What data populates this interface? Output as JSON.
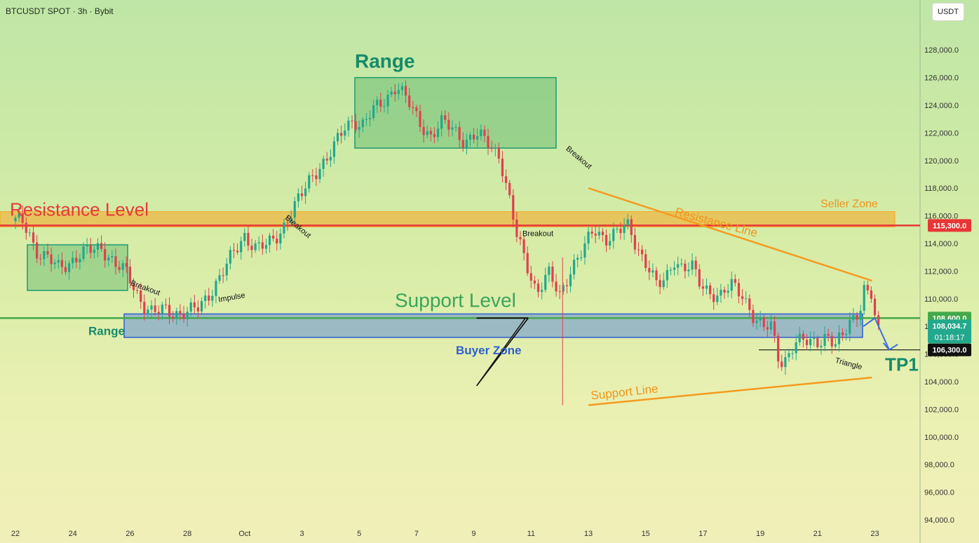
{
  "header": {
    "title": "BTCUSDT SPOT · 3h · Bybit",
    "unit_button": "USDT"
  },
  "colors": {
    "candle_up": "#22a88c",
    "candle_down": "#e0404e",
    "resistance": "#e83535",
    "support": "#43a84a",
    "zone_orange": "#f5a623",
    "zone_blue": "#4a7be0",
    "trend_orange": "#f59b1f",
    "range_green": "#3aa55a"
  },
  "chart_data": {
    "type": "candlestick",
    "ylim": [
      94000,
      128800
    ],
    "y_ticks": [
      94000,
      96000,
      98000,
      100000,
      102000,
      104000,
      106000,
      108000,
      110000,
      112000,
      114000,
      116000,
      118000,
      120000,
      122000,
      124000,
      126000,
      128000
    ],
    "y_tick_labels": [
      "94,000.0",
      "96,000.0",
      "98,000.0",
      "100,000.0",
      "102,000.0",
      "104,000.0",
      "106,000.0",
      "108,000.0",
      "110,000.0",
      "112,000.0",
      "114,000.0",
      "116,000.0",
      "118,000.0",
      "120,000.0",
      "122,000.0",
      "124,000.0",
      "126,000.0",
      "128,000.0"
    ],
    "x_ticks": [
      "22",
      "24",
      "26",
      "28",
      "Oct",
      "3",
      "5",
      "7",
      "9",
      "11",
      "13",
      "15",
      "17",
      "19",
      "21",
      "23"
    ],
    "candle_path_days": [
      0,
      0.3,
      0.5,
      0.7,
      1,
      1.5,
      2,
      2.5,
      3,
      3.5,
      3.9,
      4.2,
      4.5,
      4.8,
      5.2,
      5.6,
      6,
      6.4,
      6.8,
      7.2,
      7.6,
      8,
      8.4,
      8.8,
      9.2,
      9.6,
      10,
      10.3,
      10.6,
      10.9,
      11.2,
      11.5,
      11.8,
      12.1,
      12.5,
      12.9,
      13.3,
      13.7,
      14.1,
      14.5,
      14.9,
      15.3,
      15.7,
      16.1,
      16.5,
      16.9,
      17.2,
      17.5,
      17.8,
      18.2,
      18.6,
      19,
      19.4,
      19.8,
      20.2,
      20.6,
      21,
      21.4,
      21.6,
      21.8,
      22.1,
      22.4,
      22.7,
      23,
      23.3,
      23.6,
      23.9,
      24.2,
      24.6,
      25,
      25.4,
      25.8,
      26.1,
      26.4,
      26.6,
      26.8,
      27.2,
      27.6,
      28,
      28.3,
      28.6,
      28.9,
      29.1,
      29.35,
      29.5
    ],
    "candle_path_prices": [
      115600,
      115500,
      114800,
      113500,
      113000,
      112300,
      112800,
      113400,
      113800,
      112400,
      111800,
      110600,
      109500,
      108900,
      109200,
      109000,
      109000,
      109300,
      110500,
      111800,
      113200,
      114600,
      113700,
      113800,
      114700,
      116200,
      117500,
      118700,
      119600,
      120200,
      121200,
      122400,
      123000,
      122500,
      123600,
      124400,
      125500,
      124200,
      122800,
      121800,
      122700,
      122300,
      121400,
      121800,
      121300,
      120400,
      117500,
      114500,
      112800,
      110500,
      111800,
      110200,
      112300,
      113400,
      115000,
      114400,
      114800,
      115200,
      114200,
      113400,
      112300,
      110800,
      111400,
      112900,
      112200,
      112300,
      111000,
      110600,
      110200,
      110900,
      110300,
      108600,
      107800,
      108000,
      106000,
      105400,
      106700,
      106900,
      107000,
      107300,
      106500,
      107300,
      108500,
      108800,
      109600
    ],
    "candles_after": [
      111000,
      110600,
      110000,
      108800,
      108034.7
    ],
    "price_labels": {
      "resistance": "115,300.0",
      "support": "108,600.0",
      "last": "108,034.7",
      "countdown": "01:18:17",
      "tp": "106,300.0"
    },
    "levels": {
      "resistance": 115300,
      "support": 108600,
      "tp": 106300
    },
    "annotations": {
      "resistance_level": "Resistance Level",
      "support_level": "Support Level",
      "seller_zone": "Seller Zone",
      "buyer_zone": "Buyer Zone",
      "range_top": "Range",
      "range_left": "Range",
      "resistance_line": "Resistance Line",
      "support_line": "Support Line",
      "triangle": "Triangle",
      "tp1": "TP1",
      "impulse": "Impulse",
      "breakout": "Breakout"
    }
  }
}
